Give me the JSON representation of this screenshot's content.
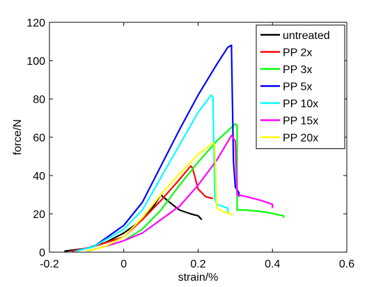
{
  "chart_data": {
    "type": "line",
    "title": "",
    "xlabel": "strain/%",
    "ylabel": "force/N",
    "xlim": [
      -0.2,
      0.6
    ],
    "ylim": [
      0,
      120
    ],
    "xticks": [
      -0.2,
      0,
      0.2,
      0.4,
      0.6
    ],
    "xtick_labels": [
      "-0.2",
      "0",
      "0.2",
      "0.4",
      "0.6"
    ],
    "yticks": [
      0,
      20,
      40,
      60,
      80,
      100,
      120
    ],
    "ytick_labels": [
      "0",
      "20",
      "40",
      "60",
      "80",
      "100",
      "120"
    ],
    "grid": false,
    "legend_position": "top-right",
    "series": [
      {
        "name": "untreated",
        "color": "#000000",
        "points": [
          [
            -0.16,
            0.5
          ],
          [
            -0.1,
            2
          ],
          [
            -0.05,
            5
          ],
          [
            0.0,
            10
          ],
          [
            0.05,
            17
          ],
          [
            0.08,
            24
          ],
          [
            0.1,
            30
          ],
          [
            0.105,
            29
          ],
          [
            0.13,
            25
          ],
          [
            0.15,
            22
          ],
          [
            0.18,
            20
          ],
          [
            0.2,
            19
          ],
          [
            0.21,
            17
          ]
        ]
      },
      {
        "name": "PP 2x",
        "color": "#ff0000",
        "points": [
          [
            -0.14,
            0.5
          ],
          [
            -0.08,
            3
          ],
          [
            0.0,
            8
          ],
          [
            0.05,
            17
          ],
          [
            0.1,
            27
          ],
          [
            0.15,
            38
          ],
          [
            0.18,
            45
          ],
          [
            0.185,
            44
          ],
          [
            0.2,
            33
          ],
          [
            0.22,
            29
          ],
          [
            0.24,
            28
          ]
        ]
      },
      {
        "name": "PP 3x",
        "color": "#00ff00",
        "points": [
          [
            -0.1,
            0.5
          ],
          [
            -0.05,
            3
          ],
          [
            0.0,
            6
          ],
          [
            0.05,
            12
          ],
          [
            0.1,
            22
          ],
          [
            0.15,
            35
          ],
          [
            0.2,
            47
          ],
          [
            0.25,
            58
          ],
          [
            0.3,
            67
          ],
          [
            0.305,
            66
          ],
          [
            0.305,
            22
          ],
          [
            0.33,
            22
          ],
          [
            0.38,
            21
          ],
          [
            0.43,
            19
          ],
          [
            0.43,
            18
          ]
        ]
      },
      {
        "name": "PP 5x",
        "color": "#0000ff",
        "points": [
          [
            -0.13,
            0.5
          ],
          [
            -0.08,
            3
          ],
          [
            0.0,
            14
          ],
          [
            0.05,
            26
          ],
          [
            0.1,
            45
          ],
          [
            0.15,
            64
          ],
          [
            0.2,
            82
          ],
          [
            0.25,
            98
          ],
          [
            0.28,
            107
          ],
          [
            0.29,
            108
          ],
          [
            0.29,
            105
          ],
          [
            0.295,
            48
          ],
          [
            0.3,
            34
          ],
          [
            0.31,
            31
          ],
          [
            0.31,
            29
          ]
        ]
      },
      {
        "name": "PP 10x",
        "color": "#00ffff",
        "points": [
          [
            -0.13,
            0.5
          ],
          [
            -0.08,
            3
          ],
          [
            0.0,
            12
          ],
          [
            0.05,
            22
          ],
          [
            0.1,
            39
          ],
          [
            0.15,
            56
          ],
          [
            0.2,
            73
          ],
          [
            0.235,
            82
          ],
          [
            0.24,
            81
          ],
          [
            0.245,
            28
          ],
          [
            0.25,
            25
          ],
          [
            0.28,
            23
          ],
          [
            0.28,
            20
          ]
        ]
      },
      {
        "name": "PP 15x",
        "color": "#ff00ff",
        "points": [
          [
            -0.1,
            0.5
          ],
          [
            -0.05,
            3
          ],
          [
            0.0,
            6
          ],
          [
            0.05,
            10
          ],
          [
            0.1,
            17
          ],
          [
            0.15,
            24
          ],
          [
            0.2,
            35
          ],
          [
            0.25,
            48
          ],
          [
            0.29,
            61
          ],
          [
            0.3,
            58
          ],
          [
            0.305,
            30
          ],
          [
            0.33,
            29
          ],
          [
            0.37,
            27
          ],
          [
            0.4,
            25
          ],
          [
            0.4,
            23
          ]
        ]
      },
      {
        "name": "PP 20x",
        "color": "#ffff00",
        "points": [
          [
            -0.1,
            0.5
          ],
          [
            -0.05,
            3
          ],
          [
            0.0,
            8
          ],
          [
            0.05,
            18
          ],
          [
            0.1,
            30
          ],
          [
            0.15,
            41
          ],
          [
            0.2,
            51
          ],
          [
            0.24,
            57
          ],
          [
            0.245,
            56
          ],
          [
            0.25,
            23
          ],
          [
            0.27,
            21
          ],
          [
            0.29,
            20
          ],
          [
            0.29,
            19
          ]
        ]
      }
    ]
  }
}
